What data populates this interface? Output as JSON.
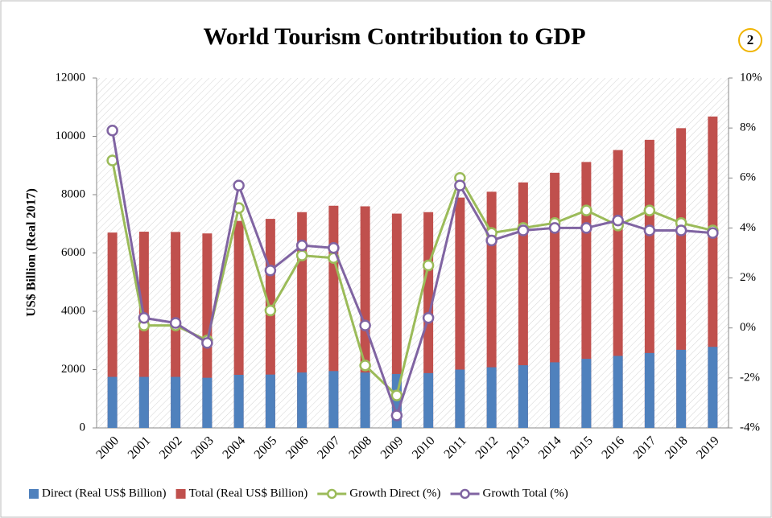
{
  "chart_data": {
    "type": "bar",
    "title": "World Tourism Contribution to GDP",
    "annotation": "2",
    "y_label": "US$ Billion  (Real 2017)",
    "categories": [
      "2000",
      "2001",
      "2002",
      "2003",
      "2004",
      "2005",
      "2006",
      "2007",
      "2008",
      "2009",
      "2010",
      "2011",
      "2012",
      "2013",
      "2014",
      "2015",
      "2016",
      "2017",
      "2018",
      "2019"
    ],
    "series": [
      {
        "name": "Direct (Real US$ Billion)",
        "type": "bar",
        "color": "#4f81bd",
        "values": [
          1750,
          1750,
          1750,
          1720,
          1820,
          1830,
          1900,
          1950,
          1900,
          1850,
          1880,
          2000,
          2080,
          2150,
          2250,
          2370,
          2470,
          2570,
          2680,
          2780
        ]
      },
      {
        "name": "Total (Real US$ Billion)",
        "type": "bar",
        "color": "#c0504d",
        "values": [
          6700,
          6730,
          6720,
          6670,
          7100,
          7170,
          7400,
          7620,
          7600,
          7350,
          7400,
          7900,
          8100,
          8420,
          8750,
          9120,
          9530,
          9880,
          10280,
          10680
        ]
      },
      {
        "name": "Growth Direct (%)",
        "type": "line",
        "axis": "y2",
        "color": "#9bbb59",
        "values": [
          6.7,
          0.1,
          0.1,
          -0.5,
          4.8,
          0.7,
          2.9,
          2.8,
          -1.5,
          -2.7,
          2.5,
          6.0,
          3.8,
          4.0,
          4.2,
          4.7,
          4.1,
          4.7,
          4.2,
          3.9
        ]
      },
      {
        "name": "Growth Total  (%)",
        "type": "line",
        "axis": "y2",
        "color": "#8064a2",
        "values": [
          7.9,
          0.4,
          0.2,
          -0.6,
          5.7,
          2.3,
          3.3,
          3.2,
          0.1,
          -3.5,
          0.4,
          5.7,
          3.5,
          3.9,
          4.0,
          4.0,
          4.3,
          3.9,
          3.9,
          3.8
        ]
      }
    ],
    "ylim": [
      0,
      12000
    ],
    "yticks": [
      0,
      2000,
      4000,
      6000,
      8000,
      10000,
      12000
    ],
    "y2lim": [
      -4,
      10
    ],
    "y2ticks": [
      {
        "value": -4,
        "label": "-4%"
      },
      {
        "value": -2,
        "label": "-2%"
      },
      {
        "value": 0,
        "label": "0%"
      },
      {
        "value": 2,
        "label": "2%"
      },
      {
        "value": 4,
        "label": "4%"
      },
      {
        "value": 6,
        "label": "6%"
      },
      {
        "value": 8,
        "label": "8%"
      },
      {
        "value": 10,
        "label": "10%"
      }
    ],
    "legend": "bottom"
  }
}
